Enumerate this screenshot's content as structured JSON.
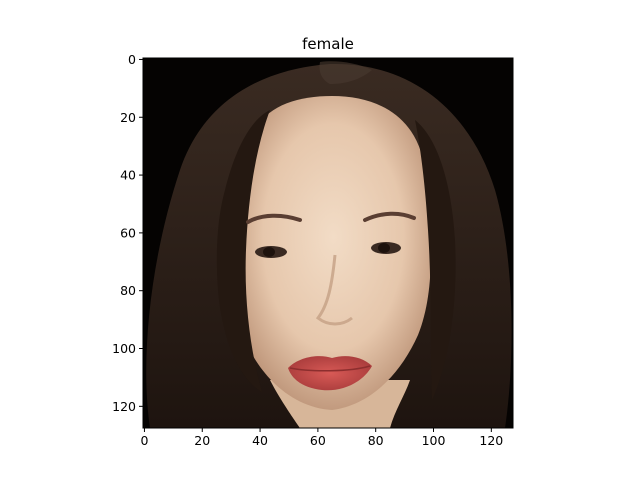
{
  "chart_data": {
    "type": "image",
    "title": "female",
    "xlabel": "",
    "ylabel": "",
    "xlim": [
      -0.5,
      127.5
    ],
    "ylim": [
      127.5,
      -0.5
    ],
    "y_inverted": true,
    "x_ticks": [
      0,
      20,
      40,
      60,
      80,
      100,
      120
    ],
    "y_ticks": [
      0,
      20,
      40,
      60,
      80,
      100,
      120
    ],
    "grid": false,
    "image_content": "face-portrait"
  },
  "colors": {
    "background": "#000000",
    "hair": "#2a1d16",
    "skin": "#e9cdb3",
    "skin_shadow": "#c49a7e",
    "lips": "#c94a48",
    "eyes": "#3a2a22",
    "axis": "#000000"
  }
}
